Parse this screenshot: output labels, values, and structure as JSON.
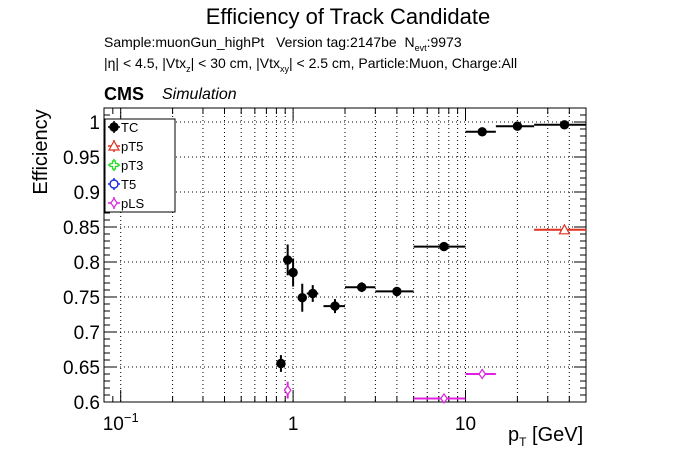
{
  "title": "Efficiency of Track Candidate",
  "info": {
    "sample": "Sample:muonGun_highPt",
    "version": "Version tag:2147be",
    "nevt_label": "N",
    "nevt_sub": "evt",
    "nevt_value": ":9973",
    "line2_a": "|η| < 4.5, |Vtx",
    "line2_sub1": "z",
    "line2_b": "| < 30 cm, |Vtx",
    "line2_sub2": "xy",
    "line2_c": "| < 2.5 cm, Particle:Muon, Charge:All"
  },
  "cms": "CMS",
  "simulation": "Simulation",
  "chart_data": {
    "type": "scatter",
    "xlabel": "p",
    "xlabel_sub": "T",
    "xlabel_unit": "[GeV]",
    "ylabel": "Efficiency",
    "xscale": "log",
    "xlim": [
      0.08,
      50
    ],
    "ylim": [
      0.6,
      1.02
    ],
    "grid": true,
    "legend_position": "top-left",
    "x_ticks": [
      {
        "value": 0.1,
        "base": "10",
        "exp": "−1"
      },
      {
        "value": 1,
        "base": "1",
        "exp": ""
      },
      {
        "value": 10,
        "base": "10",
        "exp": ""
      }
    ],
    "y_ticks": [
      {
        "value": 0.6,
        "label": "0.6"
      },
      {
        "value": 0.65,
        "label": "0.65"
      },
      {
        "value": 0.7,
        "label": "0.7"
      },
      {
        "value": 0.75,
        "label": "0.75"
      },
      {
        "value": 0.8,
        "label": "0.8"
      },
      {
        "value": 0.85,
        "label": "0.85"
      },
      {
        "value": 0.9,
        "label": "0.9"
      },
      {
        "value": 0.95,
        "label": "0.95"
      },
      {
        "value": 1.0,
        "label": "1"
      }
    ],
    "series": [
      {
        "name": "TC",
        "color": "#000000",
        "marker": "filled-circle",
        "points": [
          {
            "x": 0.85,
            "xlo": 0.8,
            "xhi": 0.9,
            "y": 0.655,
            "err": 0.012
          },
          {
            "x": 0.93,
            "xlo": 0.9,
            "xhi": 0.96,
            "y": 0.803,
            "err": 0.022
          },
          {
            "x": 1.0,
            "xlo": 0.96,
            "xhi": 1.05,
            "y": 0.785,
            "err": 0.02
          },
          {
            "x": 1.13,
            "xlo": 1.06,
            "xhi": 1.2,
            "y": 0.749,
            "err": 0.02
          },
          {
            "x": 1.3,
            "xlo": 1.2,
            "xhi": 1.4,
            "y": 0.755,
            "err": 0.012
          },
          {
            "x": 1.75,
            "xlo": 1.5,
            "xhi": 2.0,
            "y": 0.737,
            "err": 0.01
          },
          {
            "x": 2.5,
            "xlo": 2.0,
            "xhi": 3.0,
            "y": 0.764,
            "err": 0.007
          },
          {
            "x": 4.0,
            "xlo": 3.0,
            "xhi": 5.0,
            "y": 0.758,
            "err": 0.005
          },
          {
            "x": 7.5,
            "xlo": 5.0,
            "xhi": 10.0,
            "y": 0.822,
            "err": 0.003
          },
          {
            "x": 12.5,
            "xlo": 10.0,
            "xhi": 15.0,
            "y": 0.986,
            "err": 0.002
          },
          {
            "x": 20.0,
            "xlo": 15.0,
            "xhi": 25.0,
            "y": 0.994,
            "err": 0.001
          },
          {
            "x": 37.5,
            "xlo": 25.0,
            "xhi": 50.0,
            "y": 0.996,
            "err": 0.001
          }
        ]
      },
      {
        "name": "pT5",
        "color": "#e0301e",
        "marker": "open-triangle",
        "points": [
          {
            "x": 37.5,
            "xlo": 25.0,
            "xhi": 50.0,
            "y": 0.846,
            "err": 0.002
          }
        ]
      },
      {
        "name": "pT3",
        "color": "#22dd22",
        "marker": "open-cross",
        "points": []
      },
      {
        "name": "T5",
        "color": "#1a2be0",
        "marker": "open-circle",
        "points": []
      },
      {
        "name": "pLS",
        "color": "#e020e0",
        "marker": "open-diamond",
        "points": [
          {
            "x": 0.93,
            "xlo": 0.9,
            "xhi": 0.96,
            "y": 0.617,
            "err": 0.012
          },
          {
            "x": 7.5,
            "xlo": 5.0,
            "xhi": 10.0,
            "y": 0.605,
            "err": 0.002
          },
          {
            "x": 12.5,
            "xlo": 10.0,
            "xhi": 15.0,
            "y": 0.64,
            "err": 0.002
          }
        ]
      }
    ]
  }
}
